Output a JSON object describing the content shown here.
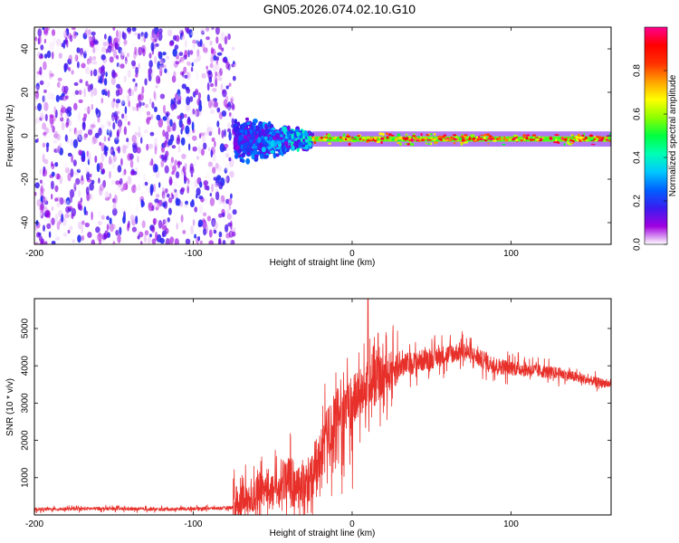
{
  "title": "GN05.2026.074.02.10.G10",
  "chart_data": [
    {
      "type": "heatmap",
      "xlabel": "Height of straight line (km)",
      "ylabel": "Frequency (Hz)",
      "xlim": [
        -200,
        163
      ],
      "ylim": [
        -50,
        50
      ],
      "xticks": [
        "-200",
        "-100",
        "0",
        "100"
      ],
      "xtick_values": [
        -200,
        -100,
        0,
        100
      ],
      "yticks": [
        "-40",
        "-20",
        "0",
        "20",
        "40"
      ],
      "ytick_values": [
        -40,
        -20,
        0,
        20,
        40
      ],
      "colorbar": {
        "label": "Normalized spectral amplitude",
        "range": [
          0.0,
          1.0
        ],
        "ticks": [
          "0.0",
          "0.2",
          "0.4",
          "0.6",
          "0.8"
        ],
        "tick_values": [
          0.0,
          0.2,
          0.4,
          0.6,
          0.8
        ],
        "colors": [
          "#ffffff",
          "#a000e0",
          "#3a1cf0",
          "#0060ff",
          "#00c8ff",
          "#00ffb4",
          "#00ff40",
          "#8cff00",
          "#ffff00",
          "#ffa000",
          "#ff3000",
          "#ff0000",
          "#ff0090"
        ]
      },
      "regions": [
        {
          "name": "noise",
          "x_range": [
            -200,
            -74
          ],
          "freq_range": [
            -50,
            50
          ],
          "amplitude_range": [
            0.0,
            0.2
          ]
        },
        {
          "name": "transition",
          "x_range": [
            -74,
            -25
          ],
          "freq_center": -2,
          "freq_halfwidth_start": 12,
          "freq_halfwidth_end": 4,
          "amplitude_range": [
            0.1,
            0.4
          ]
        },
        {
          "name": "tone",
          "x_range": [
            -25,
            163
          ],
          "freq_center": -1.5,
          "freq_halfwidth": 2.5,
          "amplitude_range": [
            0.5,
            1.0
          ]
        }
      ]
    },
    {
      "type": "line",
      "xlabel": "Height of straight line (km)",
      "ylabel": "SNR (10 * v/v)",
      "xlim": [
        -200,
        163
      ],
      "ylim": [
        0,
        5800
      ],
      "xticks": [
        "-200",
        "-100",
        "0",
        "100"
      ],
      "xtick_values": [
        -200,
        -100,
        0,
        100
      ],
      "yticks": [
        "1000",
        "2000",
        "3000",
        "4000",
        "5000"
      ],
      "ytick_values": [
        1000,
        2000,
        3000,
        4000,
        5000
      ],
      "line_color": "#e8302a",
      "series": [
        {
          "name": "SNR",
          "x": [
            -200,
            -180,
            -160,
            -140,
            -120,
            -100,
            -85,
            -75,
            -70,
            -65,
            -60,
            -55,
            -50,
            -45,
            -40,
            -35,
            -30,
            -25,
            -20,
            -15,
            -10,
            -5,
            0,
            5,
            10,
            15,
            20,
            25,
            30,
            40,
            50,
            60,
            70,
            80,
            90,
            100,
            110,
            120,
            130,
            140,
            150,
            163
          ],
          "y": [
            150,
            160,
            170,
            160,
            150,
            170,
            180,
            200,
            350,
            450,
            600,
            800,
            700,
            900,
            1000,
            800,
            700,
            1200,
            1600,
            2200,
            2600,
            2800,
            3000,
            3300,
            3500,
            3600,
            3700,
            3900,
            4000,
            4100,
            4200,
            4300,
            4400,
            4200,
            4000,
            3950,
            3900,
            3850,
            3800,
            3700,
            3600,
            3500
          ]
        }
      ]
    }
  ]
}
